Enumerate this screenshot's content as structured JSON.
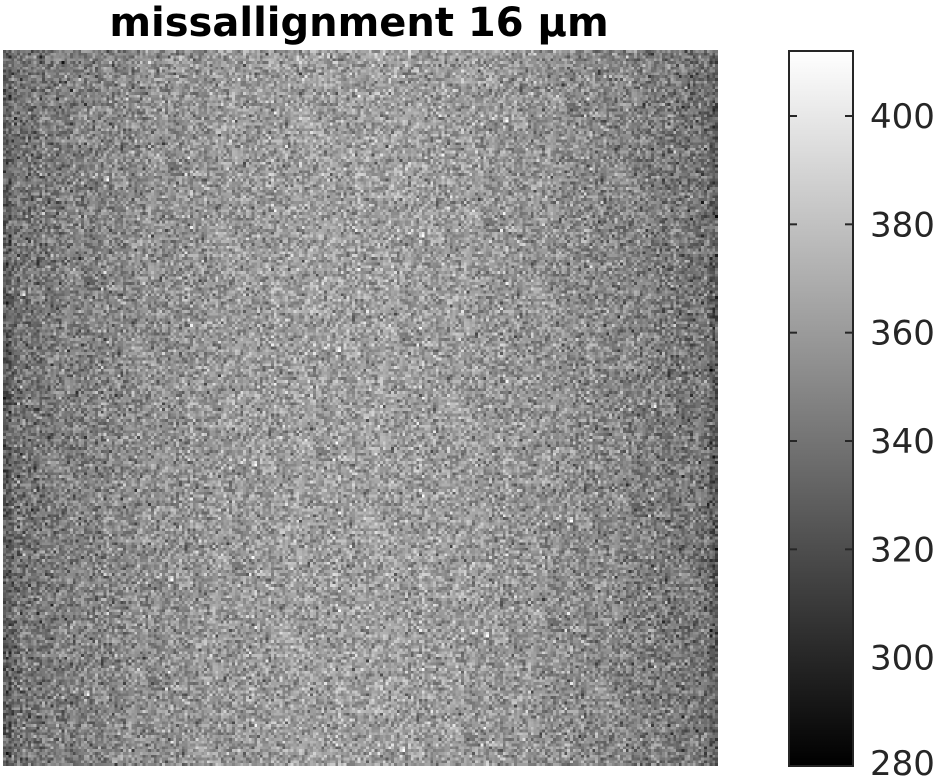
{
  "chart_data": {
    "type": "heatmap",
    "title": "missallignment 16 µm",
    "colormap": "gray",
    "colorbar": {
      "clim": [
        280,
        412
      ],
      "ticks": [
        280,
        300,
        320,
        340,
        360,
        380,
        400
      ],
      "tick_labels": [
        "280",
        "300",
        "320",
        "340",
        "360",
        "380",
        "400"
      ]
    },
    "image_summary": {
      "description": "speckle noise field",
      "rows": 256,
      "cols": 256,
      "mean_edges": 338,
      "mean_center": 362,
      "noise_std": 14
    },
    "grid": false
  }
}
